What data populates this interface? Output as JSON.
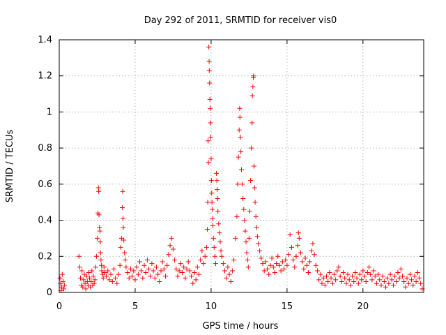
{
  "chart_data": {
    "type": "scatter",
    "title": "Day 292 of 2011, SRMTID for receiver vis0",
    "xlabel": "GPS time / hours",
    "ylabel": "SRMTID / TECUs",
    "xlim": [
      0,
      24
    ],
    "ylim": [
      0,
      1.4
    ],
    "xticks": [
      0,
      5,
      10,
      15,
      20
    ],
    "xtick_labels": [
      "0",
      "5",
      "10",
      "15",
      "20"
    ],
    "yticks": [
      0,
      0.2,
      0.4,
      0.6,
      0.8,
      1.0,
      1.2,
      1.4
    ],
    "ytick_labels": [
      "0",
      "0.2",
      "0.4",
      "0.6",
      "0.8",
      "1",
      "1.2",
      "1.4"
    ],
    "grid": true,
    "marker": "+",
    "color": "#ff0000",
    "series": [
      {
        "name": "vis0",
        "points": [
          [
            0.05,
            0.08
          ],
          [
            0.1,
            0.05
          ],
          [
            0.15,
            0.03
          ],
          [
            0.2,
            0.1
          ],
          [
            0.25,
            0.06
          ],
          [
            0.3,
            0.02
          ],
          [
            0.35,
            0.04
          ],
          [
            0.12,
            0.01
          ],
          [
            1.3,
            0.2
          ],
          [
            1.35,
            0.14
          ],
          [
            1.4,
            0.08
          ],
          [
            1.45,
            0.04
          ],
          [
            1.5,
            0.12
          ],
          [
            1.55,
            0.03
          ],
          [
            1.6,
            0.07
          ],
          [
            1.65,
            0.1
          ],
          [
            1.7,
            0.05
          ],
          [
            1.75,
            0.02
          ],
          [
            1.8,
            0.09
          ],
          [
            1.85,
            0.06
          ],
          [
            1.9,
            0.04
          ],
          [
            1.95,
            0.11
          ],
          [
            2.0,
            0.08
          ],
          [
            2.05,
            0.03
          ],
          [
            2.1,
            0.06
          ],
          [
            2.15,
            0.12
          ],
          [
            2.2,
            0.04
          ],
          [
            2.25,
            0.09
          ],
          [
            2.3,
            0.05
          ],
          [
            2.35,
            0.07
          ],
          [
            2.4,
            0.14
          ],
          [
            2.45,
            0.2
          ],
          [
            2.5,
            0.3
          ],
          [
            2.55,
            0.44
          ],
          [
            2.58,
            0.58
          ],
          [
            2.6,
            0.56
          ],
          [
            2.62,
            0.43
          ],
          [
            2.65,
            0.36
          ],
          [
            2.68,
            0.34
          ],
          [
            2.7,
            0.28
          ],
          [
            2.72,
            0.22
          ],
          [
            2.75,
            0.18
          ],
          [
            2.78,
            0.15
          ],
          [
            2.8,
            0.12
          ],
          [
            2.85,
            0.1
          ],
          [
            2.9,
            0.08
          ],
          [
            2.95,
            0.14
          ],
          [
            3.0,
            0.11
          ],
          [
            3.1,
            0.09
          ],
          [
            3.2,
            0.12
          ],
          [
            3.3,
            0.07
          ],
          [
            3.4,
            0.1
          ],
          [
            3.5,
            0.06
          ],
          [
            3.6,
            0.13
          ],
          [
            3.7,
            0.08
          ],
          [
            3.8,
            0.05
          ],
          [
            3.9,
            0.1
          ],
          [
            4.0,
            0.15
          ],
          [
            4.05,
            0.25
          ],
          [
            4.1,
            0.3
          ],
          [
            4.15,
            0.47
          ],
          [
            4.18,
            0.56
          ],
          [
            4.2,
            0.41
          ],
          [
            4.22,
            0.36
          ],
          [
            4.25,
            0.29
          ],
          [
            4.3,
            0.22
          ],
          [
            4.35,
            0.18
          ],
          [
            4.4,
            0.14
          ],
          [
            4.5,
            0.11
          ],
          [
            4.6,
            0.08
          ],
          [
            4.7,
            0.13
          ],
          [
            4.8,
            0.09
          ],
          [
            4.9,
            0.12
          ],
          [
            5.0,
            0.07
          ],
          [
            5.1,
            0.14
          ],
          [
            5.2,
            0.1
          ],
          [
            5.3,
            0.17
          ],
          [
            5.4,
            0.12
          ],
          [
            5.5,
            0.08
          ],
          [
            5.6,
            0.15
          ],
          [
            5.7,
            0.11
          ],
          [
            5.8,
            0.18
          ],
          [
            5.9,
            0.13
          ],
          [
            6.0,
            0.09
          ],
          [
            6.1,
            0.16
          ],
          [
            6.2,
            0.12
          ],
          [
            6.3,
            0.08
          ],
          [
            6.4,
            0.14
          ],
          [
            6.5,
            0.1
          ],
          [
            6.6,
            0.06
          ],
          [
            6.7,
            0.12
          ],
          [
            6.8,
            0.17
          ],
          [
            6.9,
            0.13
          ],
          [
            7.0,
            0.09
          ],
          [
            7.1,
            0.15
          ],
          [
            7.2,
            0.21
          ],
          [
            7.3,
            0.26
          ],
          [
            7.4,
            0.3
          ],
          [
            7.5,
            0.24
          ],
          [
            7.6,
            0.18
          ],
          [
            7.7,
            0.13
          ],
          [
            7.8,
            0.09
          ],
          [
            7.9,
            0.12
          ],
          [
            8.0,
            0.16
          ],
          [
            8.1,
            0.11
          ],
          [
            8.2,
            0.14
          ],
          [
            8.3,
            0.08
          ],
          [
            8.4,
            0.13
          ],
          [
            8.5,
            0.17
          ],
          [
            8.6,
            0.12
          ],
          [
            8.7,
            0.09
          ],
          [
            8.8,
            0.05
          ],
          [
            8.9,
            0.11
          ],
          [
            9.0,
            0.07
          ],
          [
            9.1,
            0.14
          ],
          [
            9.2,
            0.1
          ],
          [
            9.3,
            0.18
          ],
          [
            9.4,
            0.23
          ],
          [
            9.5,
            0.16
          ],
          [
            9.6,
            0.2
          ],
          [
            9.7,
            0.25
          ],
          [
            9.75,
            0.35
          ],
          [
            9.78,
            0.5
          ],
          [
            9.8,
            0.84
          ],
          [
            9.82,
            0.72
          ],
          [
            9.85,
            1.36
          ],
          [
            9.87,
            1.28
          ],
          [
            9.88,
            1.23
          ],
          [
            9.9,
            1.16
          ],
          [
            9.92,
            1.07
          ],
          [
            9.94,
            1.02
          ],
          [
            9.96,
            0.94
          ],
          [
            9.98,
            0.86
          ],
          [
            10.0,
            0.74
          ],
          [
            10.02,
            0.62
          ],
          [
            10.04,
            0.55
          ],
          [
            10.06,
            0.5
          ],
          [
            10.08,
            0.46
          ],
          [
            10.1,
            0.41
          ],
          [
            10.12,
            0.37
          ],
          [
            10.15,
            0.3
          ],
          [
            10.2,
            0.25
          ],
          [
            10.25,
            0.2
          ],
          [
            10.3,
            0.16
          ],
          [
            10.35,
            0.66
          ],
          [
            10.38,
            0.62
          ],
          [
            10.4,
            0.57
          ],
          [
            10.42,
            0.52
          ],
          [
            10.45,
            0.45
          ],
          [
            10.5,
            0.38
          ],
          [
            10.55,
            0.33
          ],
          [
            10.6,
            0.28
          ],
          [
            10.65,
            0.23
          ],
          [
            10.7,
            0.2
          ],
          [
            10.8,
            0.16
          ],
          [
            10.9,
            0.12
          ],
          [
            11.0,
            0.08
          ],
          [
            11.1,
            0.14
          ],
          [
            11.2,
            0.1
          ],
          [
            11.3,
            0.06
          ],
          [
            11.4,
            0.12
          ],
          [
            11.5,
            0.18
          ],
          [
            11.6,
            0.3
          ],
          [
            11.7,
            0.42
          ],
          [
            11.75,
            0.6
          ],
          [
            11.8,
            0.75
          ],
          [
            11.85,
            0.9
          ],
          [
            11.88,
            1.02
          ],
          [
            11.9,
            0.97
          ],
          [
            11.93,
            0.86
          ],
          [
            11.96,
            0.78
          ],
          [
            12.0,
            0.68
          ],
          [
            12.05,
            0.6
          ],
          [
            12.1,
            0.52
          ],
          [
            12.15,
            0.46
          ],
          [
            12.2,
            0.4
          ],
          [
            12.25,
            0.34
          ],
          [
            12.3,
            0.28
          ],
          [
            12.35,
            0.22
          ],
          [
            12.4,
            0.18
          ],
          [
            12.45,
            0.14
          ],
          [
            12.5,
            0.3
          ],
          [
            12.55,
            0.45
          ],
          [
            12.6,
            0.62
          ],
          [
            12.65,
            0.8
          ],
          [
            12.7,
            0.94
          ],
          [
            12.72,
            1.09
          ],
          [
            12.75,
            1.14
          ],
          [
            12.78,
            1.19
          ],
          [
            12.8,
            1.2
          ],
          [
            12.83,
            0.7
          ],
          [
            12.86,
            0.58
          ],
          [
            12.9,
            0.5
          ],
          [
            12.95,
            0.42
          ],
          [
            13.0,
            0.36
          ],
          [
            13.05,
            0.31
          ],
          [
            13.1,
            0.27
          ],
          [
            13.2,
            0.23
          ],
          [
            13.3,
            0.19
          ],
          [
            13.4,
            0.16
          ],
          [
            13.5,
            0.12
          ],
          [
            13.6,
            0.17
          ],
          [
            13.7,
            0.13
          ],
          [
            13.8,
            0.1
          ],
          [
            13.9,
            0.15
          ],
          [
            14.0,
            0.19
          ],
          [
            14.1,
            0.14
          ],
          [
            14.2,
            0.11
          ],
          [
            14.3,
            0.16
          ],
          [
            14.4,
            0.2
          ],
          [
            14.5,
            0.15
          ],
          [
            14.6,
            0.12
          ],
          [
            14.7,
            0.17
          ],
          [
            14.8,
            0.13
          ],
          [
            14.9,
            0.18
          ],
          [
            15.0,
            0.15
          ],
          [
            15.1,
            0.21
          ],
          [
            15.2,
            0.32
          ],
          [
            15.3,
            0.25
          ],
          [
            15.4,
            0.18
          ],
          [
            15.5,
            0.14
          ],
          [
            15.6,
            0.2
          ],
          [
            15.7,
            0.26
          ],
          [
            15.75,
            0.33
          ],
          [
            15.8,
            0.3
          ],
          [
            15.9,
            0.22
          ],
          [
            16.0,
            0.17
          ],
          [
            16.1,
            0.13
          ],
          [
            16.2,
            0.19
          ],
          [
            16.3,
            0.15
          ],
          [
            16.4,
            0.11
          ],
          [
            16.5,
            0.17
          ],
          [
            16.6,
            0.23
          ],
          [
            16.7,
            0.27
          ],
          [
            16.8,
            0.21
          ],
          [
            16.9,
            0.15
          ],
          [
            17.0,
            0.12
          ],
          [
            17.1,
            0.07
          ],
          [
            17.2,
            0.1
          ],
          [
            17.3,
            0.05
          ],
          [
            17.4,
            0.08
          ],
          [
            17.5,
            0.04
          ],
          [
            17.6,
            0.09
          ],
          [
            17.7,
            0.06
          ],
          [
            17.8,
            0.11
          ],
          [
            17.9,
            0.08
          ],
          [
            18.0,
            0.05
          ],
          [
            18.1,
            0.1
          ],
          [
            18.2,
            0.07
          ],
          [
            18.3,
            0.12
          ],
          [
            18.4,
            0.14
          ],
          [
            18.5,
            0.09
          ],
          [
            18.6,
            0.06
          ],
          [
            18.7,
            0.11
          ],
          [
            18.8,
            0.08
          ],
          [
            18.9,
            0.05
          ],
          [
            19.0,
            0.1
          ],
          [
            19.1,
            0.07
          ],
          [
            19.2,
            0.04
          ],
          [
            19.3,
            0.09
          ],
          [
            19.4,
            0.06
          ],
          [
            19.5,
            0.11
          ],
          [
            19.6,
            0.08
          ],
          [
            19.7,
            0.05
          ],
          [
            19.8,
            0.1
          ],
          [
            19.9,
            0.07
          ],
          [
            20.0,
            0.12
          ],
          [
            20.1,
            0.09
          ],
          [
            20.2,
            0.06
          ],
          [
            20.3,
            0.11
          ],
          [
            20.4,
            0.14
          ],
          [
            20.5,
            0.1
          ],
          [
            20.6,
            0.07
          ],
          [
            20.7,
            0.12
          ],
          [
            20.8,
            0.09
          ],
          [
            20.9,
            0.05
          ],
          [
            21.0,
            0.1
          ],
          [
            21.1,
            0.07
          ],
          [
            21.2,
            0.04
          ],
          [
            21.3,
            0.09
          ],
          [
            21.4,
            0.06
          ],
          [
            21.5,
            0.03
          ],
          [
            21.6,
            0.08
          ],
          [
            21.7,
            0.05
          ],
          [
            21.8,
            0.1
          ],
          [
            21.9,
            0.07
          ],
          [
            22.0,
            0.04
          ],
          [
            22.1,
            0.09
          ],
          [
            22.2,
            0.06
          ],
          [
            22.3,
            0.11
          ],
          [
            22.4,
            0.08
          ],
          [
            22.5,
            0.13
          ],
          [
            22.6,
            0.09
          ],
          [
            22.7,
            0.06
          ],
          [
            22.8,
            0.03
          ],
          [
            22.9,
            0.08
          ],
          [
            23.0,
            0.05
          ],
          [
            23.1,
            0.1
          ],
          [
            23.2,
            0.07
          ],
          [
            23.3,
            0.04
          ],
          [
            23.4,
            0.09
          ],
          [
            23.5,
            0.06
          ],
          [
            23.6,
            0.11
          ],
          [
            23.7,
            0.08
          ],
          [
            23.8,
            0.05
          ],
          [
            23.9,
            0.02
          ]
        ]
      }
    ]
  }
}
